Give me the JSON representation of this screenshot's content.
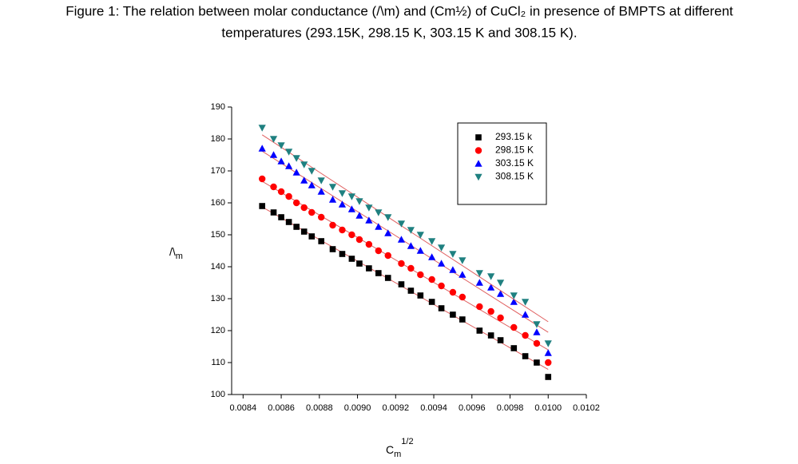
{
  "chart_data": {
    "type": "scatter",
    "title_lines": [
      "Figure 1: The relation between molar conductance (/\\m) and (Cm½) of CuCl₂ in presence of BMPTS at different",
      "temperatures (293.15K, 298.15 K, 303.15 K and 308.15 K)."
    ],
    "ylabel": {
      "base": "/\\",
      "sub": "m"
    },
    "xlabel": {
      "base": "C",
      "sub": "m",
      "sup": "1/2"
    },
    "x": [
      0.0085,
      0.00856,
      0.0086,
      0.00864,
      0.00868,
      0.00872,
      0.00876,
      0.00881,
      0.00887,
      0.00892,
      0.00897,
      0.00901,
      0.00906,
      0.00911,
      0.00916,
      0.00923,
      0.00928,
      0.00933,
      0.00939,
      0.00944,
      0.0095,
      0.00955,
      0.00964,
      0.0097,
      0.00975,
      0.00982,
      0.00988,
      0.00994,
      0.01
    ],
    "series": [
      {
        "name": "293.15 k",
        "color": "#000000",
        "marker": "square",
        "values": [
          159,
          157,
          155.5,
          154,
          152.5,
          151,
          149.5,
          148,
          145.5,
          144,
          142.5,
          141,
          139.5,
          138,
          136.5,
          134.5,
          132.5,
          131,
          129,
          127,
          125,
          123.5,
          120,
          118.5,
          117,
          114.5,
          112,
          110,
          105.5
        ]
      },
      {
        "name": "298.15 K",
        "color": "#ff0000",
        "marker": "circle",
        "values": [
          167.5,
          165,
          163.5,
          162,
          160,
          158.5,
          157,
          155.5,
          153,
          151.5,
          150,
          148.5,
          147,
          145,
          143.5,
          141,
          139.5,
          137.5,
          136,
          134,
          132,
          130.5,
          127.5,
          126,
          124,
          121,
          118.5,
          116,
          110
        ]
      },
      {
        "name": "303.15 K",
        "color": "#0000ff",
        "marker": "triangle-up",
        "values": [
          177,
          175,
          173,
          171.5,
          169.5,
          167,
          165.5,
          163.5,
          161,
          159.5,
          158,
          156,
          154.5,
          152.5,
          150.5,
          148.5,
          146.5,
          145,
          143,
          141,
          139,
          137.5,
          135,
          133.5,
          131.5,
          129,
          125,
          119.5,
          113
        ]
      },
      {
        "name": "308.15 K",
        "color": "#1f8080",
        "marker": "triangle-down",
        "values": [
          183.5,
          180,
          178,
          176,
          174,
          172,
          170,
          167,
          165,
          163,
          162,
          160.5,
          158.5,
          157,
          155.5,
          153.5,
          151.5,
          150,
          148,
          146,
          144,
          142,
          138,
          137,
          135,
          131,
          129,
          122,
          116
        ]
      }
    ],
    "fit_color": "#e06060",
    "xlim": [
      0.00834,
      0.0102
    ],
    "ylim": [
      100,
      190
    ],
    "xticks": [
      0.0084,
      0.0086,
      0.0088,
      {
        "value": 0.009,
        "label": "0.0090"
      },
      0.0092,
      0.0094,
      0.0096,
      0.0098,
      {
        "value": 0.01,
        "label": "0.0100"
      },
      0.0102
    ],
    "yticks": [
      100,
      110,
      120,
      130,
      140,
      150,
      160,
      170,
      180,
      190
    ],
    "legend": "top-right"
  }
}
